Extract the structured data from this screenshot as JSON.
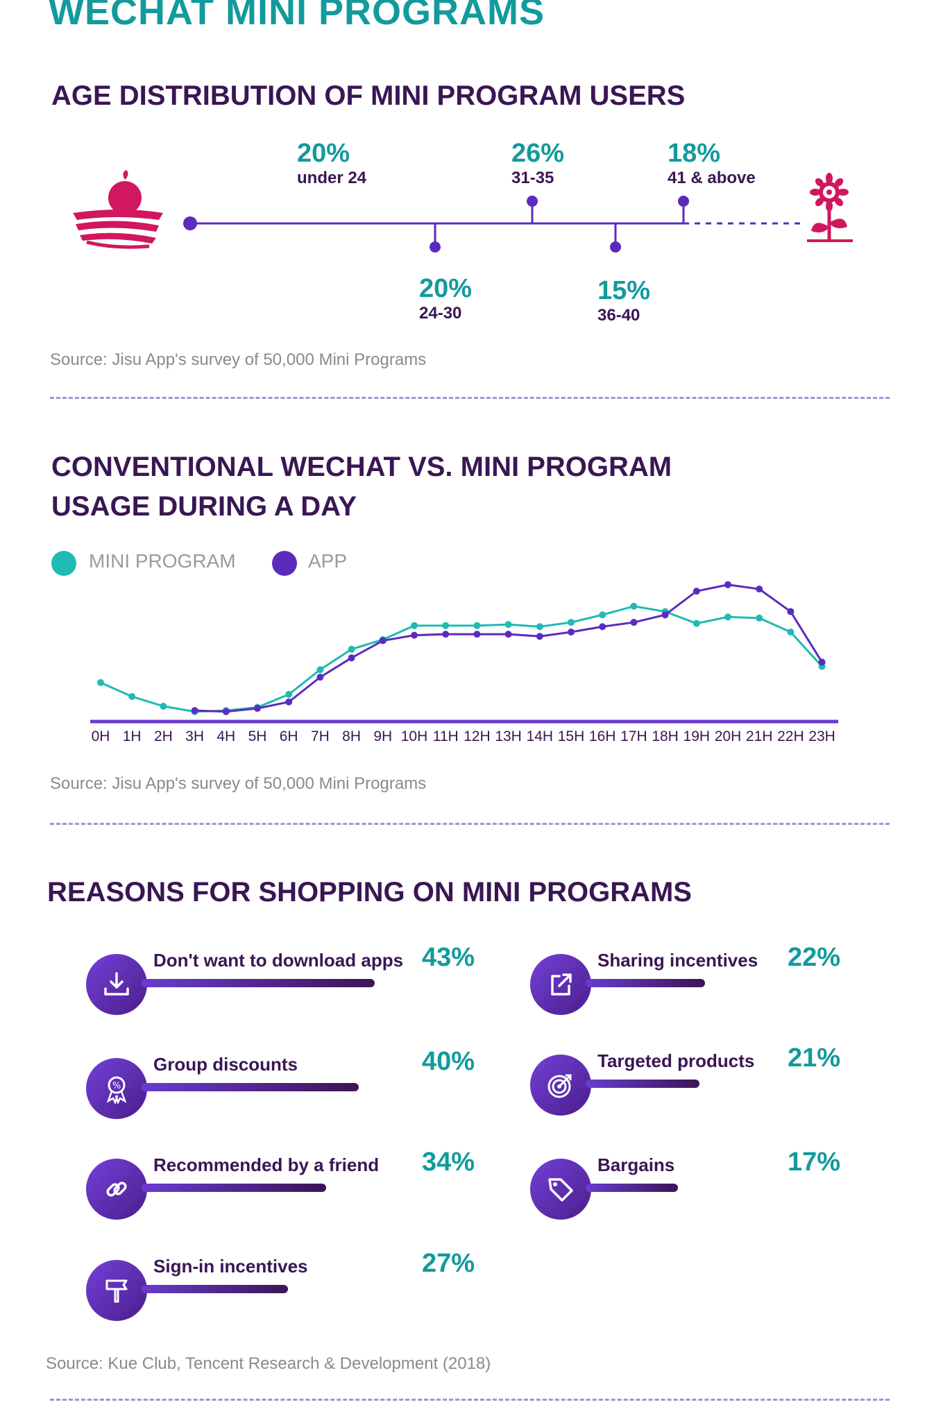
{
  "title": "WECHAT MINI PROGRAMS",
  "colors": {
    "teal": "#129a9c",
    "purple": "#5b2bbd",
    "dark": "#3a1654",
    "magenta": "#d0175f"
  },
  "age_section": {
    "title": "AGE DISTRIBUTION OF MINI PROGRAM USERS",
    "groups": [
      {
        "pct": "20%",
        "label": "under 24"
      },
      {
        "pct": "20%",
        "label": "24-30"
      },
      {
        "pct": "26%",
        "label": "31-35"
      },
      {
        "pct": "15%",
        "label": "36-40"
      },
      {
        "pct": "18%",
        "label": "41 & above"
      }
    ],
    "source": "Source: Jisu App's survey of 50,000 Mini Programs"
  },
  "usage_section": {
    "title_line1": "CONVENTIONAL WECHAT VS. MINI PROGRAM",
    "title_line2": "USAGE DURING A DAY",
    "source": "Source: Jisu App's survey of 50,000 Mini Programs"
  },
  "chart_data": {
    "type": "line",
    "categories": [
      "0H",
      "1H",
      "2H",
      "3H",
      "4H",
      "5H",
      "6H",
      "7H",
      "8H",
      "9H",
      "10H",
      "11H",
      "12H",
      "13H",
      "14H",
      "15H",
      "16H",
      "17H",
      "18H",
      "19H",
      "20H",
      "21H",
      "22H",
      "23H"
    ],
    "series": [
      {
        "name": "MINI PROGRAM",
        "color": "#1fbab4",
        "values": [
          33,
          20,
          11,
          6,
          7,
          10,
          22,
          45,
          64,
          73,
          86,
          86,
          86,
          87,
          85,
          89,
          96,
          104,
          99,
          88,
          94,
          93,
          80,
          48
        ]
      },
      {
        "name": "APP",
        "color": "#5b2bbd",
        "values": [
          null,
          null,
          null,
          7,
          6,
          9,
          15,
          38,
          56,
          72,
          77,
          78,
          78,
          78,
          76,
          80,
          85,
          89,
          96,
          118,
          124,
          120,
          99,
          52
        ]
      }
    ],
    "grid": false,
    "legend": "top-left"
  },
  "reasons_section": {
    "title": "REASONS FOR SHOPPING ON MINI PROGRAMS",
    "items": [
      {
        "label": "Don't want to download apps",
        "pct": "43%",
        "value": 43,
        "icon": "download-icon"
      },
      {
        "label": "Group discounts",
        "pct": "40%",
        "value": 40,
        "icon": "badge-discount-icon"
      },
      {
        "label": "Recommended by a friend",
        "pct": "34%",
        "value": 34,
        "icon": "link-icon"
      },
      {
        "label": "Sign-in incentives",
        "pct": "27%",
        "value": 27,
        "icon": "signpost-icon"
      },
      {
        "label": "Sharing incentives",
        "pct": "22%",
        "value": 22,
        "icon": "share-icon"
      },
      {
        "label": "Targeted products",
        "pct": "21%",
        "value": 21,
        "icon": "target-icon"
      },
      {
        "label": "Bargains",
        "pct": "17%",
        "value": 17,
        "icon": "tag-icon"
      }
    ],
    "source": "Source: Kue Club, Tencent Research & Development (2018)"
  }
}
